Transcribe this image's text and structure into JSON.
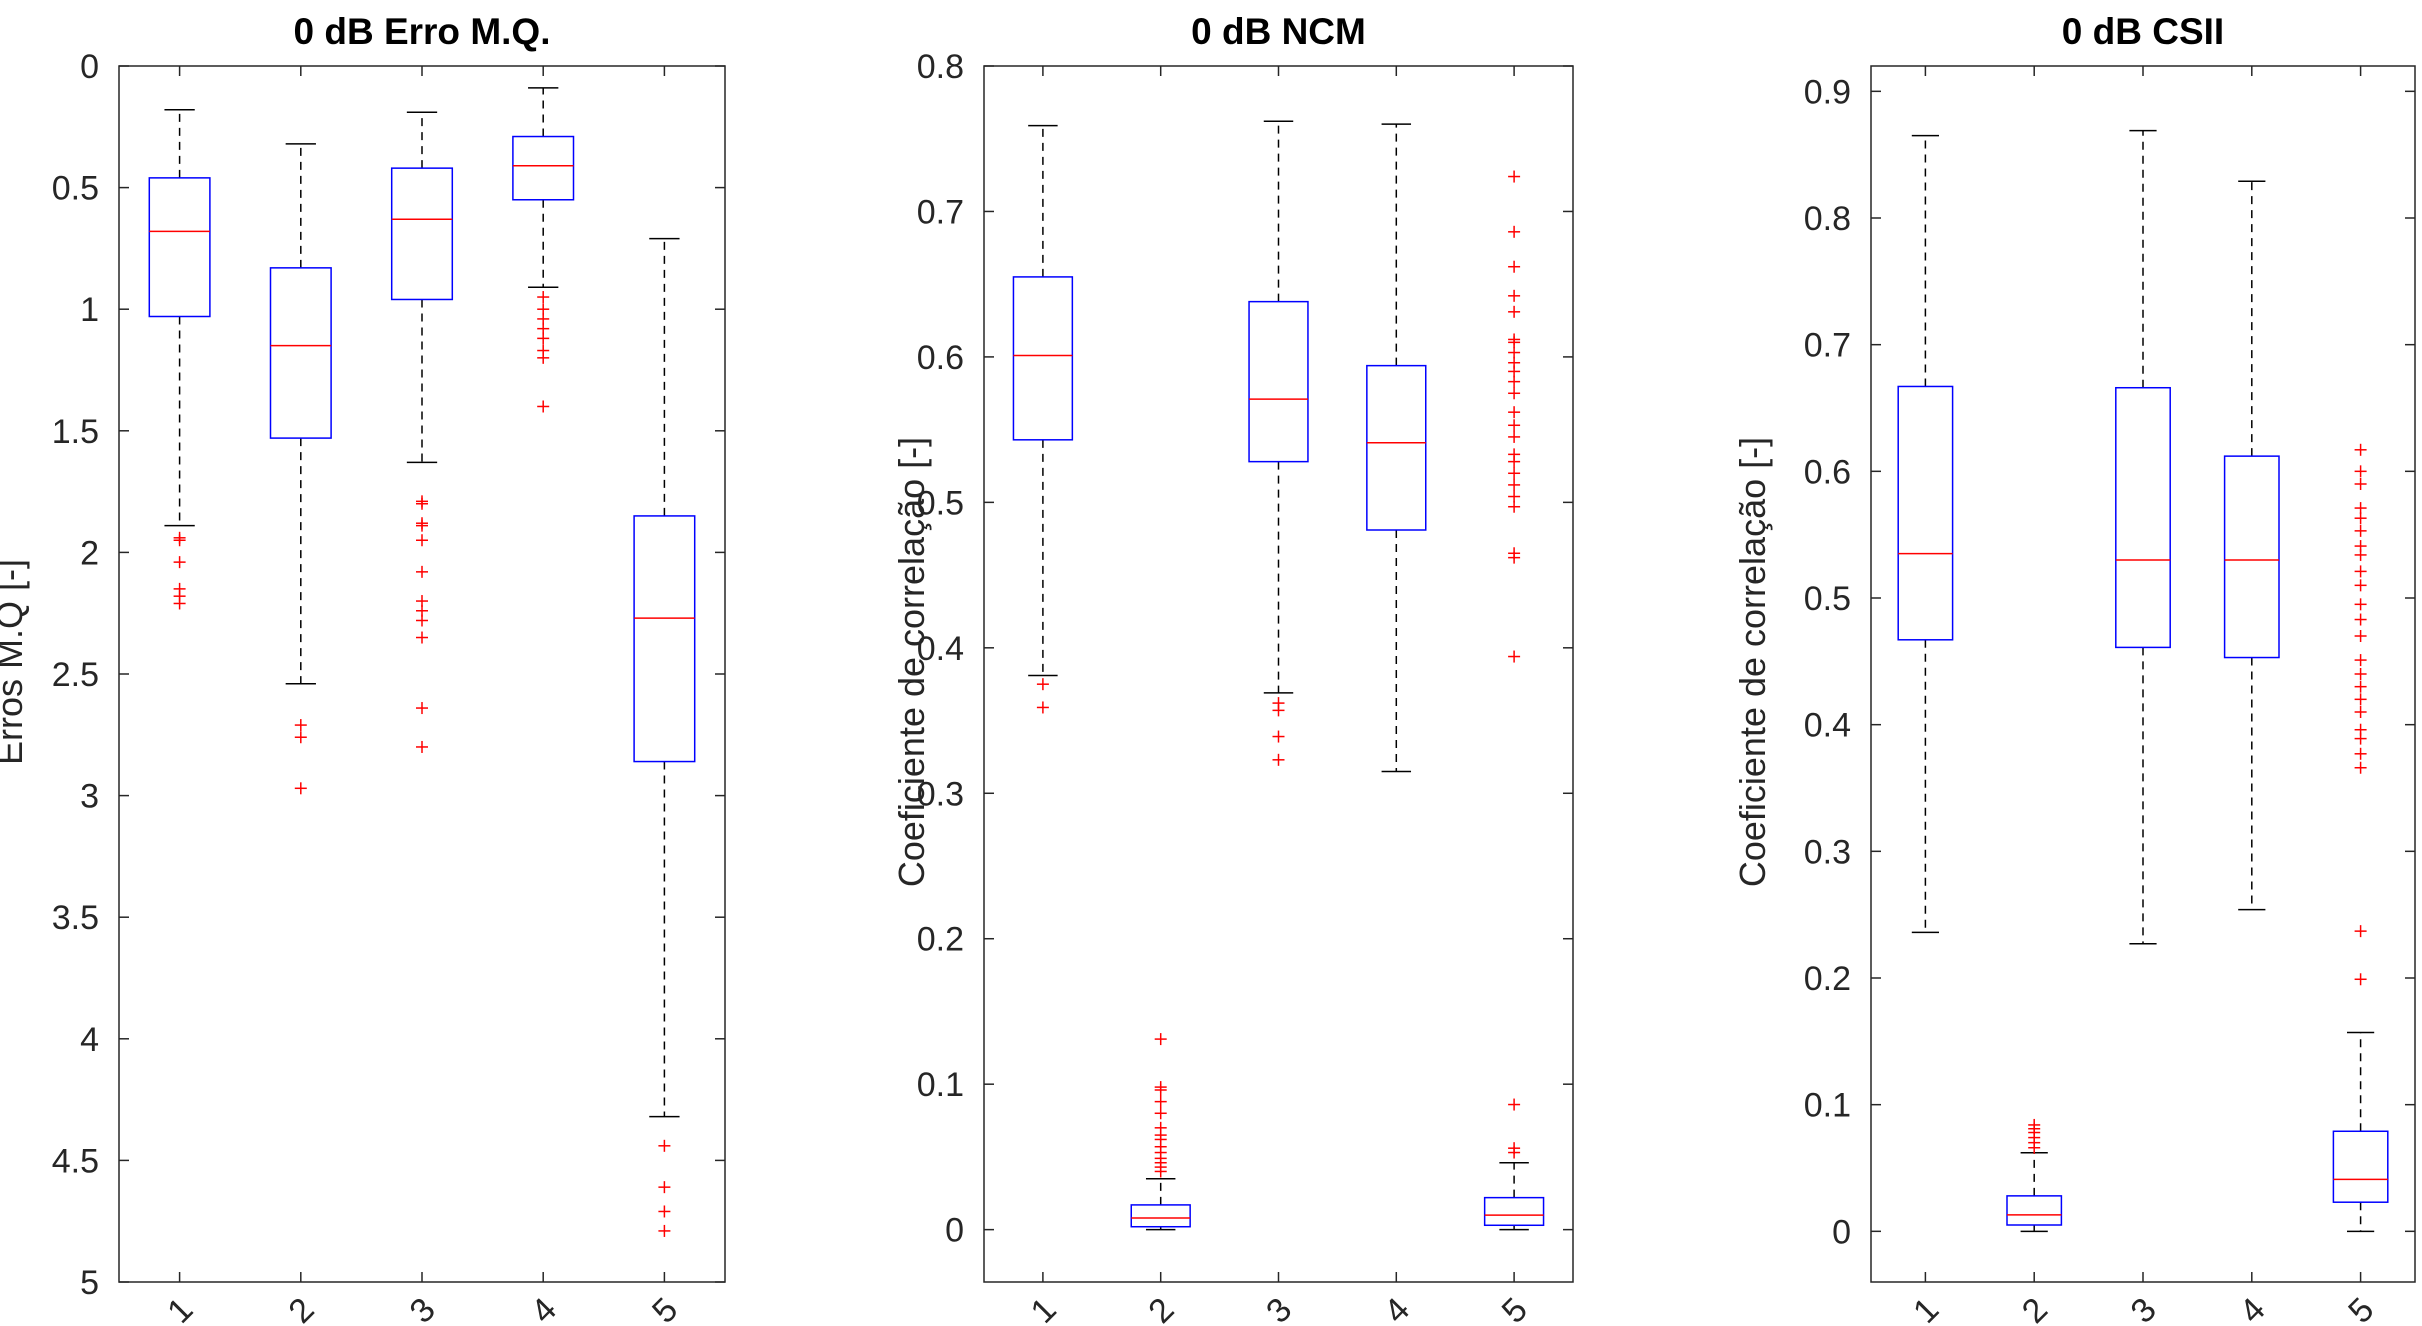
{
  "chart_data": [
    {
      "type": "box",
      "title": "0 dB Erro M.Q.",
      "ylabel": "Erros M.Q [-]",
      "ylim": [
        0,
        5
      ],
      "y_reversed": true,
      "yticks": [
        "0",
        "0.5",
        "1",
        "1.5",
        "2",
        "2.5",
        "3",
        "3.5",
        "4",
        "4.5",
        "5"
      ],
      "categories": [
        "1",
        "2",
        "3",
        "4",
        "5"
      ],
      "boxes": [
        {
          "whisker_low": 0.18,
          "q1": 0.46,
          "median": 0.68,
          "q3": 1.03,
          "whisker_high": 1.89,
          "outliers": [
            1.94,
            1.95,
            2.04,
            2.15,
            2.18,
            2.21
          ]
        },
        {
          "whisker_low": 0.32,
          "q1": 0.83,
          "median": 1.15,
          "q3": 1.53,
          "whisker_high": 2.54,
          "outliers": [
            2.71,
            2.76,
            2.97
          ]
        },
        {
          "whisker_low": 0.19,
          "q1": 0.42,
          "median": 0.63,
          "q3": 0.96,
          "whisker_high": 1.63,
          "outliers": [
            1.79,
            1.8,
            1.88,
            1.89,
            1.95,
            2.08,
            2.2,
            2.24,
            2.28,
            2.35,
            2.64,
            2.8
          ]
        },
        {
          "whisker_low": 0.09,
          "q1": 0.29,
          "median": 0.41,
          "q3": 0.55,
          "whisker_high": 0.91,
          "outliers": [
            0.95,
            1.0,
            1.04,
            1.08,
            1.12,
            1.17,
            1.2,
            1.4
          ]
        },
        {
          "whisker_low": 0.71,
          "q1": 1.85,
          "median": 2.27,
          "q3": 2.86,
          "whisker_high": 4.32,
          "outliers": [
            4.44,
            4.61,
            4.71,
            4.79
          ]
        }
      ]
    },
    {
      "type": "box",
      "title": "0 dB NCM",
      "ylabel": "Coeficiente de correlação [-]",
      "ylim": [
        -0.036,
        0.8
      ],
      "y_reversed": false,
      "yticks": [
        "0",
        "0.1",
        "0.2",
        "0.3",
        "0.4",
        "0.5",
        "0.6",
        "0.7",
        "0.8"
      ],
      "categories": [
        "1",
        "2",
        "3",
        "4",
        "5"
      ],
      "boxes": [
        {
          "whisker_low": 0.381,
          "q1": 0.543,
          "median": 0.601,
          "q3": 0.655,
          "whisker_high": 0.759,
          "outliers": [
            0.375,
            0.359
          ]
        },
        {
          "whisker_low": 0.0,
          "q1": 0.002,
          "median": 0.008,
          "q3": 0.017,
          "whisker_high": 0.035,
          "outliers": [
            0.04,
            0.043,
            0.046,
            0.049,
            0.053,
            0.057,
            0.062,
            0.065,
            0.07,
            0.08,
            0.088,
            0.096,
            0.098,
            0.131
          ]
        },
        {
          "whisker_low": 0.369,
          "q1": 0.528,
          "median": 0.571,
          "q3": 0.638,
          "whisker_high": 0.762,
          "outliers": [
            0.362,
            0.357,
            0.339,
            0.323
          ]
        },
        {
          "whisker_low": 0.315,
          "q1": 0.481,
          "median": 0.541,
          "q3": 0.594,
          "whisker_high": 0.76,
          "outliers": []
        },
        {
          "whisker_low": 0.0,
          "q1": 0.003,
          "median": 0.01,
          "q3": 0.022,
          "whisker_high": 0.046,
          "outliers": [
            0.053,
            0.056,
            0.086,
            0.394,
            0.462,
            0.465,
            0.497,
            0.504,
            0.512,
            0.52,
            0.528,
            0.533,
            0.545,
            0.553,
            0.562,
            0.575,
            0.583,
            0.59,
            0.596,
            0.603,
            0.61,
            0.612,
            0.631,
            0.642,
            0.662,
            0.686,
            0.724
          ]
        }
      ]
    },
    {
      "type": "box",
      "title": "0 dB CSII",
      "ylabel": "Coeficiente de correlação [-]",
      "ylim": [
        -0.04,
        0.92
      ],
      "y_reversed": false,
      "yticks": [
        "0",
        "0.1",
        "0.2",
        "0.3",
        "0.4",
        "0.5",
        "0.6",
        "0.7",
        "0.8",
        "0.9"
      ],
      "categories": [
        "1",
        "2",
        "3",
        "4",
        "5"
      ],
      "boxes": [
        {
          "whisker_low": 0.236,
          "q1": 0.467,
          "median": 0.535,
          "q3": 0.667,
          "whisker_high": 0.865,
          "outliers": []
        },
        {
          "whisker_low": 0.0,
          "q1": 0.005,
          "median": 0.013,
          "q3": 0.028,
          "whisker_high": 0.062,
          "outliers": [
            0.066,
            0.07,
            0.074,
            0.078,
            0.081,
            0.084
          ]
        },
        {
          "whisker_low": 0.227,
          "q1": 0.461,
          "median": 0.53,
          "q3": 0.666,
          "whisker_high": 0.869,
          "outliers": []
        },
        {
          "whisker_low": 0.254,
          "q1": 0.453,
          "median": 0.53,
          "q3": 0.612,
          "whisker_high": 0.829,
          "outliers": []
        },
        {
          "whisker_low": 0.0,
          "q1": 0.023,
          "median": 0.041,
          "q3": 0.079,
          "whisker_high": 0.157,
          "outliers": [
            0.199,
            0.237,
            0.366,
            0.377,
            0.389,
            0.396,
            0.41,
            0.42,
            0.43,
            0.44,
            0.451,
            0.47,
            0.483,
            0.495,
            0.51,
            0.521,
            0.534,
            0.541,
            0.553,
            0.563,
            0.571,
            0.59,
            0.6,
            0.617
          ]
        }
      ]
    }
  ]
}
